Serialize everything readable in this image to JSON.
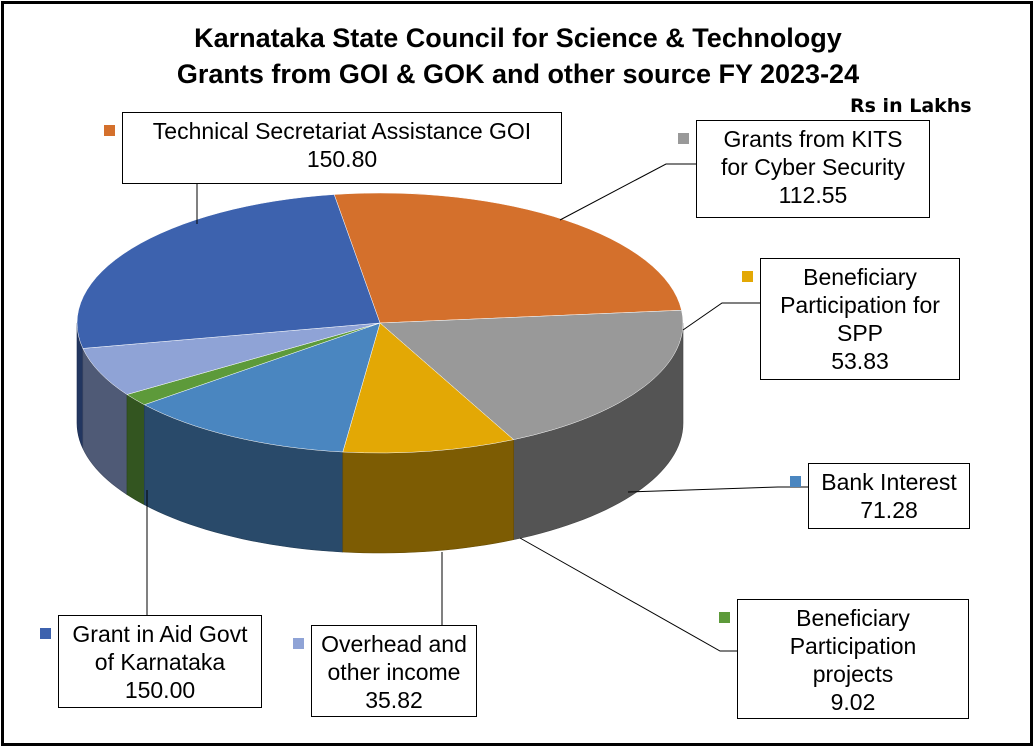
{
  "chart_data": {
    "type": "pie",
    "three_d": true,
    "title": "Karnataka State Council for Science & Technology",
    "subtitle": "Grants from GOI & GOK and other source FY 2023-24",
    "units": "Rs in Lakhs",
    "legend": "none",
    "data_labels": "callout-boxes",
    "slices": [
      {
        "name": "Technical Secretariat Assistance GOI",
        "label_lines": [
          "Technical Secretariat Assistance GOI"
        ],
        "value": 150.8,
        "value_text": "150.80",
        "color": "#D4702C"
      },
      {
        "name": "Grants from KITS for Cyber Security",
        "label_lines": [
          "Grants from KITS",
          "for Cyber Security"
        ],
        "value": 112.55,
        "value_text": "112.55",
        "color": "#999999"
      },
      {
        "name": "Beneficiary Participation for SPP",
        "label_lines": [
          "Beneficiary",
          "Participation for",
          "SPP"
        ],
        "value": 53.83,
        "value_text": "53.83",
        "color": "#E3A805"
      },
      {
        "name": "Bank Interest",
        "label_lines": [
          "Bank Interest"
        ],
        "value": 71.28,
        "value_text": "71.28",
        "color": "#4A86C0"
      },
      {
        "name": "Beneficiary Participation projects",
        "label_lines": [
          "Beneficiary",
          "Participation",
          "projects"
        ],
        "value": 9.02,
        "value_text": "9.02",
        "color": "#5D9A3A"
      },
      {
        "name": "Overhead and other income",
        "label_lines": [
          "Overhead  and",
          "other income"
        ],
        "value": 35.82,
        "value_text": "35.82",
        "color": "#8FA3D6"
      },
      {
        "name": "Grant in Aid Govt of Karnataka",
        "label_lines": [
          "Grant in Aid Govt",
          "of Karnataka"
        ],
        "value": 150.0,
        "value_text": "150.00",
        "color": "#3D62AE"
      }
    ]
  }
}
